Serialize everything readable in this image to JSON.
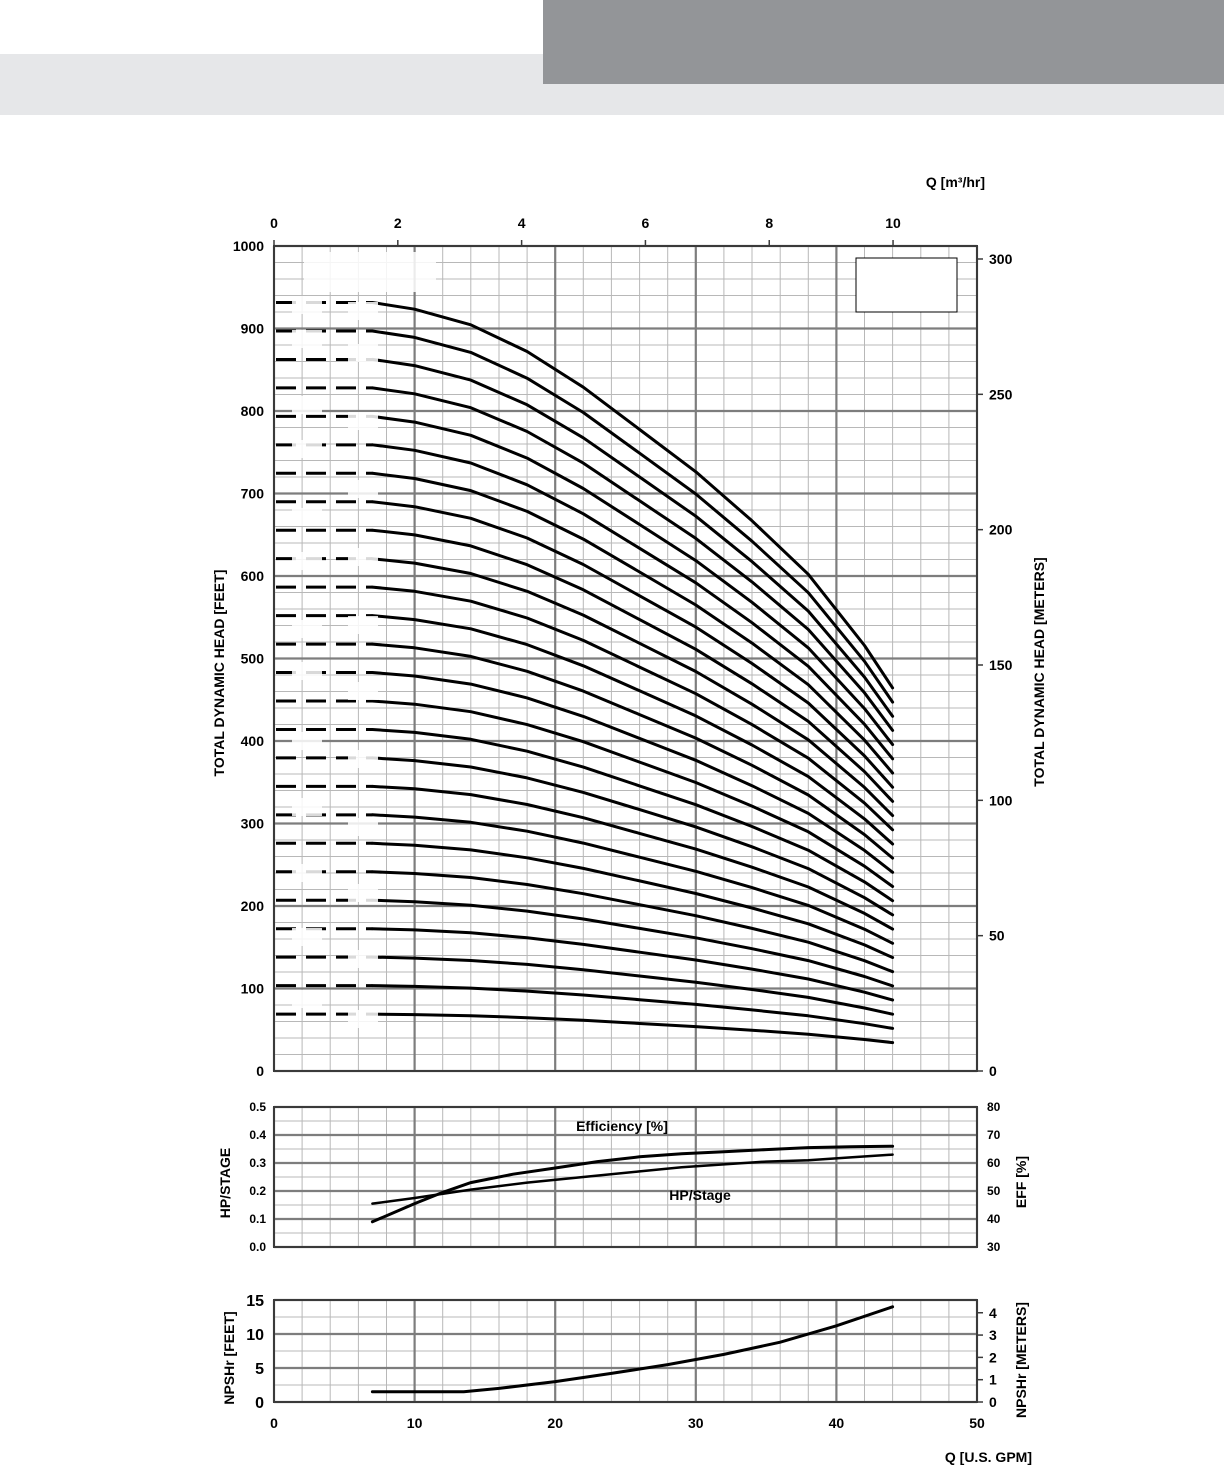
{
  "chart_data": [
    {
      "type": "line",
      "name": "head",
      "xlabel": "Q [U.S. GPM]",
      "x2label": "Q [m³/hr]",
      "ylabel": "TOTAL DYNAMIC HEAD [FEET]",
      "y2label": "TOTAL DYNAMIC HEAD [METERS]",
      "xlim": [
        0,
        50
      ],
      "x2lim": [
        0,
        11.356
      ],
      "x2ticks": [
        0,
        2,
        4,
        6,
        8,
        10
      ],
      "ylim": [
        0,
        1000
      ],
      "yticks": [
        0,
        100,
        200,
        300,
        400,
        500,
        600,
        700,
        800,
        900,
        1000
      ],
      "y2ticks": [
        0,
        50,
        100,
        150,
        200,
        250,
        300
      ],
      "grid": true,
      "x_shutoff": [
        0,
        7
      ],
      "x": [
        7,
        10,
        14,
        18,
        22,
        26,
        30,
        34,
        38,
        42,
        44
      ],
      "single_stage_head": [
        34.5,
        34.2,
        33.5,
        32.3,
        30.7,
        28.8,
        26.9,
        24.7,
        22.3,
        19.1,
        17.2
      ],
      "stages": [
        2,
        3,
        4,
        5,
        6,
        7,
        8,
        9,
        10,
        11,
        12,
        13,
        14,
        15,
        16,
        17,
        18,
        19,
        20,
        21,
        22,
        23,
        24,
        25,
        26,
        27
      ]
    },
    {
      "type": "line",
      "name": "efficiency-hp",
      "ylabel": "HP/STAGE",
      "y2label": "EFF [%]",
      "xlim": [
        0,
        50
      ],
      "ylim": [
        0,
        0.5
      ],
      "yticks": [
        "0.0",
        "0.1",
        "0.2",
        "0.3",
        "0.4",
        "0.5"
      ],
      "y2lim": [
        30,
        80
      ],
      "y2ticks": [
        30,
        40,
        50,
        60,
        70,
        80
      ],
      "grid": true,
      "series": [
        {
          "name": "Efficiency [%]",
          "axis": "right",
          "x": [
            7,
            10,
            12,
            14,
            17,
            20,
            23,
            26,
            29,
            32,
            35,
            38,
            41,
            44
          ],
          "values": [
            39,
            45.5,
            49.5,
            53,
            56,
            58.2,
            60.5,
            62.2,
            63.3,
            64,
            64.8,
            65.5,
            65.8,
            66
          ]
        },
        {
          "name": "HP/Stage",
          "axis": "left",
          "x": [
            7,
            10,
            14,
            18,
            22,
            26,
            29,
            32,
            35,
            38,
            41,
            44
          ],
          "values": [
            0.155,
            0.175,
            0.205,
            0.23,
            0.25,
            0.27,
            0.285,
            0.295,
            0.305,
            0.31,
            0.32,
            0.33
          ]
        }
      ],
      "labels": {
        "efficiency": "Efficiency [%]",
        "hp": "HP/Stage"
      }
    },
    {
      "type": "line",
      "name": "npshr",
      "xlabel": "Q [U.S. GPM]",
      "ylabel": "NPSHr [FEET]",
      "y2label": "NPSHr [METERS]",
      "xlim": [
        0,
        50
      ],
      "xticks": [
        0,
        10,
        20,
        30,
        40,
        50
      ],
      "ylim": [
        0,
        15
      ],
      "yticks": [
        0,
        5,
        10,
        15
      ],
      "y2ticks": [
        0,
        1,
        2,
        3,
        4
      ],
      "grid": true,
      "x": [
        7,
        10,
        13.5,
        16,
        20,
        24,
        28,
        32,
        36,
        40,
        44
      ],
      "values": [
        1.5,
        1.5,
        1.5,
        2,
        3,
        4.2,
        5.5,
        7,
        8.8,
        11.2,
        14
      ]
    }
  ]
}
